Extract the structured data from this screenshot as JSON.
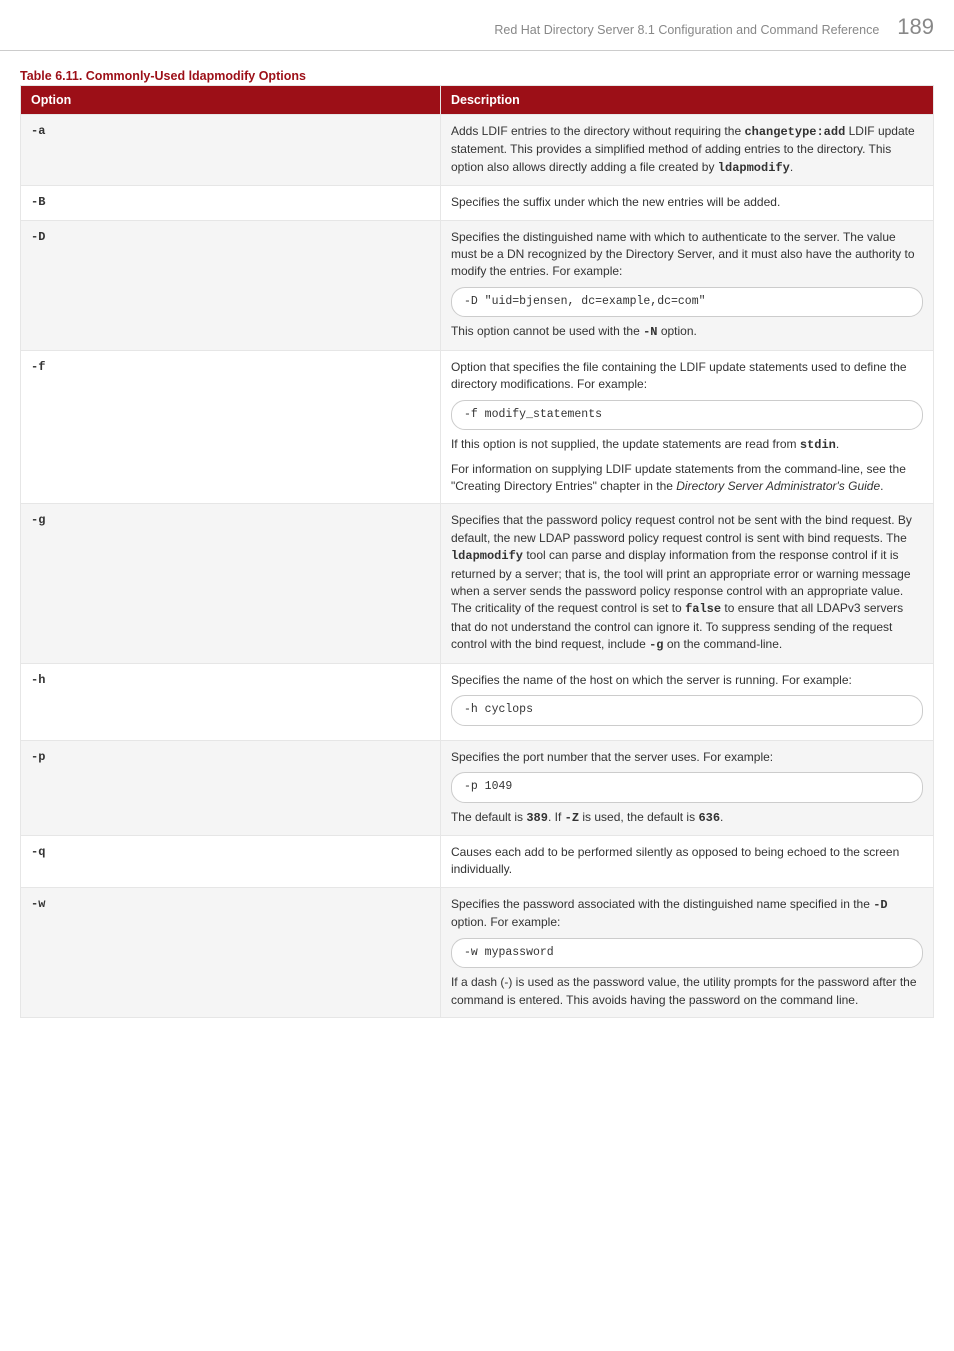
{
  "header": {
    "title": "Red Hat Directory Server 8.1 Configuration and Command Reference",
    "page": "189"
  },
  "table": {
    "caption": "Table 6.11. Commonly-Used ldapmodify Options",
    "col_option": "Option",
    "col_description": "Description",
    "rows": {
      "a": {
        "opt": "-a",
        "p1a": "Adds LDIF entries to the directory without requiring the ",
        "m1": "changetype:add",
        "p1b": " LDIF update statement. This provides a simplified method of adding entries to the directory. This option also allows directly adding a file created by ",
        "m2": "ldapmodify",
        "p1c": "."
      },
      "B": {
        "opt": "-B",
        "p1": "Specifies the suffix under which the new entries will be added."
      },
      "D": {
        "opt": "-D",
        "p1": "Specifies the distinguished name with which to authenticate to the server. The value must be a DN recognized by the Directory Server, and it must also have the authority to modify the entries. For example:",
        "code": "-D \"uid=bjensen, dc=example,dc=com\"",
        "p2a": "This option cannot be used with the ",
        "m1": "-N",
        "p2b": " option."
      },
      "f": {
        "opt": "-f",
        "p1": "Option that specifies the file containing the LDIF update statements used to define the directory modifications. For example:",
        "code": "-f modify_statements",
        "p2a": "If this option is not supplied, the update statements are read from ",
        "m1": "stdin",
        "p2b": ".",
        "p3a": "For information on supplying LDIF update statements from the command-line, see the \"Creating Directory Entries\" chapter in the ",
        "book": "Directory Server Administrator's Guide",
        "p3b": "."
      },
      "g": {
        "opt": "-g",
        "p1a": "Specifies that the password policy request control not be sent with the bind request. By default, the new LDAP password policy request control is sent with bind requests. The ",
        "m1": "ldapmodify",
        "p1b": " tool can parse and display information from the response control if it is returned by a server; that is, the tool will print an appropriate error or warning message when a server sends the password policy response control with an appropriate value. The criticality of the request control is set to ",
        "m2": "false",
        "p1c": " to ensure that all LDAPv3 servers that do not understand the control can ignore it. To suppress sending of the request control with the bind request, include ",
        "m3": "-g",
        "p1d": " on the command-line."
      },
      "h": {
        "opt": "-h",
        "p1": "Specifies the name of the host on which the server is running. For example:",
        "code": "-h cyclops"
      },
      "p": {
        "opt": "-p",
        "p1": "Specifies the port number that the server uses. For example:",
        "code": "-p 1049",
        "p2a": "The default is ",
        "m1": "389",
        "p2b": ". If ",
        "m2": "-Z",
        "p2c": " is used, the default is ",
        "m3": "636",
        "p2d": "."
      },
      "q": {
        "opt": "-q",
        "p1": "Causes each add to be performed silently as opposed to being echoed to the screen individually."
      },
      "w": {
        "opt": "-w",
        "p1a": "Specifies the password associated with the distinguished name specified in the ",
        "m1": "-D",
        "p1b": " option. For example:",
        "code": "-w mypassword",
        "p2": "If a dash (-) is used as the password value, the utility prompts for the password after the command is entered. This avoids having the password on the command line."
      }
    }
  }
}
